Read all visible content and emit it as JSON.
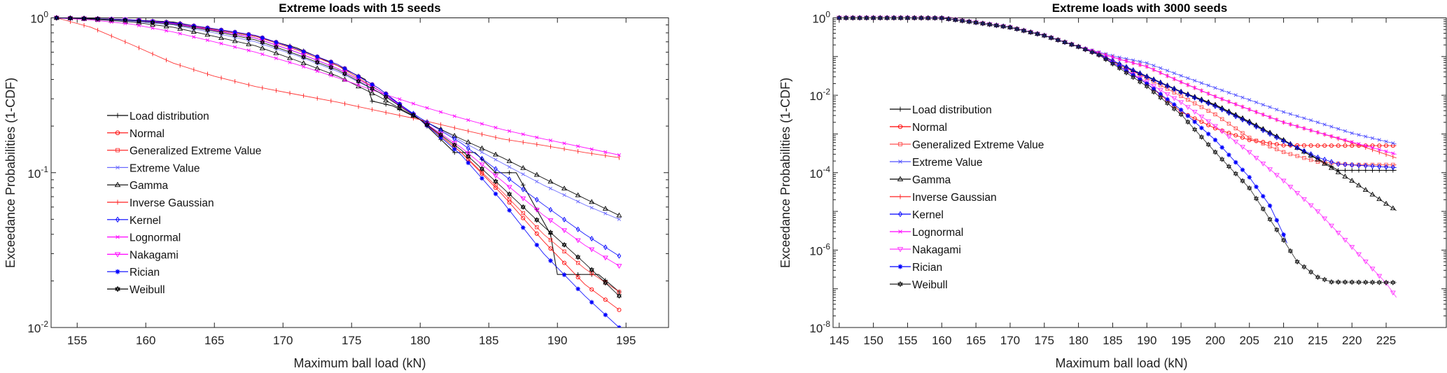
{
  "chart_data": [
    {
      "type": "line",
      "title": "Extreme loads with 15 seeds",
      "xlabel": "Maximum ball load (kN)",
      "ylabel": "Exceedance Probabilities (1-CDF)",
      "xlim": [
        153.1,
        198.1
      ],
      "ylim": [
        0.01,
        1
      ],
      "yscale": "log",
      "xticks": [
        155,
        160,
        165,
        170,
        175,
        180,
        185,
        190,
        195
      ],
      "yticks": [
        {
          "base": "10",
          "exp": "0"
        },
        {
          "base": "10",
          "exp": "-1"
        },
        {
          "base": "10",
          "exp": "-2"
        }
      ],
      "legend_placement": "center-left",
      "grid": false,
      "series": [
        {
          "name": "Load distribution",
          "color": "#000000",
          "marker": "plus",
          "x": [
            153.5,
            156,
            159,
            162,
            165,
            168,
            171,
            174,
            176,
            176.5,
            178,
            180,
            182.5,
            184,
            185.5,
            187,
            189.5,
            190,
            193,
            194.5
          ],
          "y": [
            1,
            0.99,
            0.97,
            0.94,
            0.84,
            0.76,
            0.64,
            0.49,
            0.4,
            0.29,
            0.27,
            0.22,
            0.135,
            0.135,
            0.1,
            0.1,
            0.04,
            0.022,
            0.022,
            0.017
          ]
        },
        {
          "name": "Normal",
          "color": "#ff0000",
          "marker": "circle",
          "x": [
            153.5,
            156,
            159,
            162,
            165,
            168,
            171,
            174,
            177,
            180,
            183,
            186,
            189,
            192,
            194.5
          ],
          "y": [
            1,
            0.99,
            0.97,
            0.93,
            0.85,
            0.77,
            0.63,
            0.5,
            0.35,
            0.22,
            0.135,
            0.072,
            0.036,
            0.019,
            0.013
          ]
        },
        {
          "name": "Generalized Extreme Value",
          "color": "#ff3030",
          "marker": "square",
          "x": [
            153.5,
            156,
            159,
            162,
            165,
            168,
            171,
            174,
            177,
            180,
            183,
            186,
            189,
            192,
            194.5
          ],
          "y": [
            1,
            0.99,
            0.97,
            0.93,
            0.84,
            0.76,
            0.62,
            0.49,
            0.34,
            0.22,
            0.135,
            0.075,
            0.04,
            0.024,
            0.017
          ]
        },
        {
          "name": "Extreme Value",
          "color": "#6a6aff",
          "marker": "x",
          "x": [
            153.5,
            156,
            159,
            162,
            165,
            168,
            171,
            174,
            177,
            180,
            183,
            186,
            189,
            192,
            194.5
          ],
          "y": [
            1,
            0.98,
            0.95,
            0.9,
            0.8,
            0.7,
            0.57,
            0.45,
            0.33,
            0.225,
            0.16,
            0.115,
            0.083,
            0.062,
            0.05
          ]
        },
        {
          "name": "Gamma",
          "color": "#000000",
          "marker": "triangle-up",
          "x": [
            153.5,
            156,
            159,
            162,
            165,
            168,
            171,
            174,
            177,
            180,
            183,
            186,
            189,
            192,
            194.5
          ],
          "y": [
            1,
            0.98,
            0.94,
            0.87,
            0.76,
            0.66,
            0.53,
            0.42,
            0.31,
            0.22,
            0.165,
            0.125,
            0.092,
            0.068,
            0.053
          ]
        },
        {
          "name": "Inverse Gaussian",
          "color": "#ff2020",
          "marker": "vtick",
          "x": [
            153.5,
            156,
            159,
            162,
            165,
            168,
            171,
            174,
            177,
            180,
            183,
            186,
            189,
            192,
            194.5
          ],
          "y": [
            1,
            0.87,
            0.67,
            0.51,
            0.42,
            0.36,
            0.32,
            0.285,
            0.25,
            0.22,
            0.19,
            0.165,
            0.15,
            0.135,
            0.125
          ]
        },
        {
          "name": "Kernel",
          "color": "#0000ff",
          "marker": "diamond",
          "x": [
            153.5,
            156,
            159,
            162,
            165,
            168,
            171,
            174,
            177,
            180,
            183,
            186,
            189,
            192,
            194.5
          ],
          "y": [
            1,
            0.99,
            0.97,
            0.92,
            0.83,
            0.74,
            0.6,
            0.47,
            0.34,
            0.225,
            0.155,
            0.098,
            0.062,
            0.04,
            0.029
          ]
        },
        {
          "name": "Lognormal",
          "color": "#ff00ff",
          "marker": "x",
          "x": [
            153.5,
            156,
            159,
            162,
            165,
            168,
            171,
            174,
            177,
            180,
            183,
            186,
            189,
            192,
            194.5
          ],
          "y": [
            1,
            0.97,
            0.91,
            0.81,
            0.7,
            0.6,
            0.5,
            0.41,
            0.33,
            0.27,
            0.225,
            0.19,
            0.165,
            0.145,
            0.13
          ]
        },
        {
          "name": "Nakagami",
          "color": "#ff00ff",
          "marker": "triangle-down",
          "x": [
            153.5,
            156,
            159,
            162,
            165,
            168,
            171,
            174,
            177,
            180,
            183,
            186,
            189,
            192,
            194.5
          ],
          "y": [
            1,
            0.99,
            0.97,
            0.92,
            0.83,
            0.74,
            0.6,
            0.47,
            0.34,
            0.22,
            0.145,
            0.088,
            0.053,
            0.034,
            0.025
          ]
        },
        {
          "name": "Rician",
          "color": "#0000ff",
          "marker": "star",
          "x": [
            153.5,
            156,
            159,
            162,
            165,
            168,
            171,
            174,
            177,
            180,
            183,
            186,
            189,
            192,
            194.5
          ],
          "y": [
            1,
            0.99,
            0.97,
            0.93,
            0.85,
            0.77,
            0.63,
            0.5,
            0.35,
            0.22,
            0.13,
            0.065,
            0.03,
            0.016,
            0.01
          ]
        },
        {
          "name": "Weibull",
          "color": "#000000",
          "marker": "hexagram",
          "x": [
            153.5,
            156,
            159,
            162,
            165,
            168,
            171,
            174,
            177,
            180,
            183,
            186,
            189,
            192,
            194.5
          ],
          "y": [
            1,
            0.99,
            0.96,
            0.91,
            0.82,
            0.72,
            0.58,
            0.46,
            0.33,
            0.22,
            0.14,
            0.08,
            0.045,
            0.026,
            0.016
          ]
        }
      ]
    },
    {
      "type": "line",
      "title": "Extreme loads with 3000 seeds",
      "xlabel": "Maximum ball load (kN)",
      "ylabel": "Exceedance Probabilities (1-CDF)",
      "xlim": [
        144.1,
        233.8
      ],
      "ylim": [
        1e-08,
        1
      ],
      "yscale": "log",
      "xticks": [
        145,
        150,
        155,
        160,
        165,
        170,
        175,
        180,
        185,
        190,
        195,
        200,
        205,
        210,
        215,
        220,
        225
      ],
      "yticks": [
        {
          "base": "10",
          "exp": "0"
        },
        {
          "base": "10",
          "exp": "-2"
        },
        {
          "base": "10",
          "exp": "-4"
        },
        {
          "base": "10",
          "exp": "-6"
        },
        {
          "base": "10",
          "exp": "-8"
        }
      ],
      "legend_placement": "center-left",
      "grid": false,
      "series": [
        {
          "name": "Load distribution",
          "color": "#000000",
          "marker": "plus",
          "x": [
            145,
            150,
            155,
            160,
            165,
            170,
            175,
            180,
            183,
            186,
            190,
            195,
            200,
            205,
            210,
            213,
            215,
            218,
            226.5
          ],
          "y": [
            1,
            1,
            1,
            0.99,
            0.76,
            0.57,
            0.35,
            0.18,
            0.12,
            0.06,
            0.03,
            0.012,
            0.0055,
            0.002,
            0.0007,
            0.00034,
            0.00023,
            0.000115,
            0.000115
          ]
        },
        {
          "name": "Normal",
          "color": "#ff0000",
          "marker": "circle",
          "x": [
            145,
            150,
            155,
            160,
            165,
            170,
            175,
            180,
            183,
            186,
            190,
            195,
            200,
            205,
            210,
            215,
            220,
            226.5
          ],
          "y": [
            1,
            1,
            1,
            0.99,
            0.76,
            0.57,
            0.35,
            0.18,
            0.11,
            0.055,
            0.02,
            0.0037,
            0.0014,
            0.0007,
            0.00051,
            0.0005,
            0.0005,
            0.0005
          ]
        },
        {
          "name": "Generalized Extreme Value",
          "color": "#ff5050",
          "marker": "square",
          "x": [
            145,
            150,
            155,
            160,
            165,
            170,
            175,
            180,
            183,
            186,
            190,
            195,
            200,
            205,
            210,
            215,
            220,
            226.5
          ],
          "y": [
            1,
            1,
            1,
            0.99,
            0.76,
            0.57,
            0.35,
            0.18,
            0.115,
            0.06,
            0.028,
            0.0095,
            0.0032,
            0.0008,
            0.00034,
            0.00019,
            0.00016,
            0.00016
          ]
        },
        {
          "name": "Extreme Value",
          "color": "#5050ff",
          "marker": "x",
          "x": [
            145,
            150,
            155,
            160,
            165,
            170,
            175,
            180,
            183,
            186,
            190,
            195,
            200,
            205,
            210,
            215,
            220,
            226.5
          ],
          "y": [
            1,
            1,
            1,
            0.99,
            0.76,
            0.57,
            0.35,
            0.18,
            0.13,
            0.095,
            0.068,
            0.032,
            0.0155,
            0.0076,
            0.0037,
            0.002,
            0.00105,
            0.00055
          ]
        },
        {
          "name": "Gamma",
          "color": "#000000",
          "marker": "triangle-up",
          "x": [
            145,
            150,
            155,
            160,
            165,
            170,
            175,
            180,
            183,
            186,
            190,
            195,
            200,
            205,
            210,
            215,
            220,
            226.5
          ],
          "y": [
            1,
            1,
            1,
            0.99,
            0.76,
            0.57,
            0.35,
            0.18,
            0.115,
            0.065,
            0.031,
            0.0125,
            0.0057,
            0.0021,
            0.0007,
            0.00022,
            6.2e-05,
            1.05e-05
          ]
        },
        {
          "name": "Inverse Gaussian",
          "color": "#ff2020",
          "marker": "vtick",
          "x": [
            145,
            150,
            155,
            160,
            165,
            170,
            175,
            180,
            183,
            186,
            190,
            195,
            200,
            205,
            210,
            215,
            220,
            226.5
          ],
          "y": [
            1,
            1,
            1,
            0.99,
            0.76,
            0.57,
            0.35,
            0.18,
            0.125,
            0.085,
            0.055,
            0.022,
            0.0093,
            0.0043,
            0.002,
            0.0011,
            0.00059,
            0.00024
          ]
        },
        {
          "name": "Kernel",
          "color": "#0000ff",
          "marker": "diamond",
          "x": [
            145,
            150,
            155,
            160,
            165,
            170,
            175,
            180,
            183,
            186,
            190,
            195,
            200,
            205,
            210,
            215,
            218,
            226.5
          ],
          "y": [
            1,
            1,
            1,
            0.99,
            0.76,
            0.57,
            0.35,
            0.18,
            0.115,
            0.065,
            0.03,
            0.012,
            0.0052,
            0.0019,
            0.00065,
            0.00025,
            0.000166,
            0.000135
          ]
        },
        {
          "name": "Lognormal",
          "color": "#ff00ff",
          "marker": "x",
          "x": [
            145,
            150,
            155,
            160,
            165,
            170,
            175,
            180,
            183,
            186,
            190,
            195,
            200,
            205,
            210,
            215,
            220,
            226.5
          ],
          "y": [
            1,
            1,
            1,
            0.99,
            0.76,
            0.57,
            0.35,
            0.18,
            0.125,
            0.085,
            0.055,
            0.022,
            0.0093,
            0.0043,
            0.002,
            0.0011,
            0.00062,
            0.0003
          ]
        },
        {
          "name": "Nakagami",
          "color": "#ff33ff",
          "marker": "triangle-down",
          "x": [
            145,
            150,
            155,
            160,
            165,
            170,
            175,
            180,
            183,
            186,
            190,
            195,
            200,
            205,
            210,
            215,
            220,
            225,
            226.5
          ],
          "y": [
            1,
            1,
            1,
            0.99,
            0.76,
            0.57,
            0.35,
            0.18,
            0.11,
            0.055,
            0.022,
            0.0066,
            0.0016,
            0.00034,
            6.2e-05,
            1e-05,
            1.2e-06,
            1.4e-07,
            6e-08
          ]
        },
        {
          "name": "Rician",
          "color": "#0000ff",
          "marker": "star",
          "x": [
            145,
            150,
            155,
            160,
            165,
            170,
            175,
            180,
            183,
            186,
            190,
            195,
            200,
            205,
            208,
            210,
            210.5
          ],
          "y": [
            1,
            1,
            1,
            0.99,
            0.76,
            0.57,
            0.35,
            0.18,
            0.11,
            0.055,
            0.02,
            0.0042,
            0.0007,
            7.6e-05,
            1.4e-05,
            2.5e-06,
            1.5e-06
          ]
        },
        {
          "name": "Weibull",
          "color": "#222222",
          "marker": "hexagram",
          "x": [
            145,
            150,
            155,
            160,
            165,
            170,
            175,
            180,
            183,
            186,
            190,
            195,
            200,
            205,
            210,
            212,
            215,
            217,
            226.5
          ],
          "y": [
            1,
            1,
            1,
            0.99,
            0.76,
            0.57,
            0.35,
            0.18,
            0.11,
            0.05,
            0.017,
            0.0032,
            0.00034,
            4e-05,
            1.8e-06,
            5e-07,
            2e-07,
            1.5e-07,
            1.45e-07
          ]
        }
      ]
    }
  ]
}
